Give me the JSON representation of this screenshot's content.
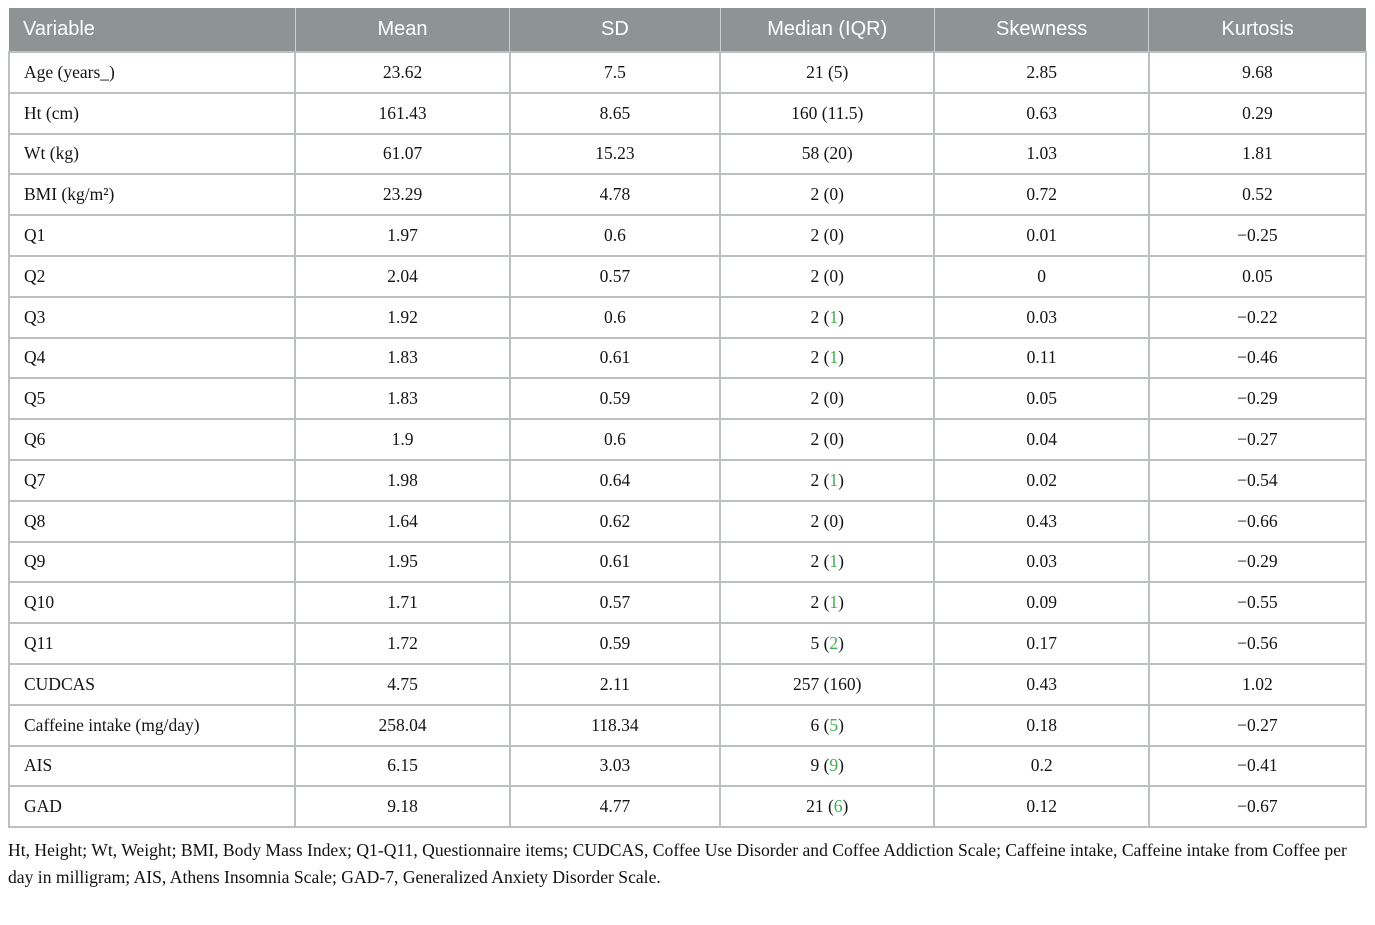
{
  "colors": {
    "header_bg": "#8e9394",
    "header_text": "#ffffff",
    "border": "#bcc0c1",
    "green_accent": "#3fae4e",
    "body_text": "#141414"
  },
  "table": {
    "columns": [
      "Variable",
      "Mean",
      "SD",
      "Median (IQR)",
      "Skewness",
      "Kurtosis"
    ],
    "rows": [
      {
        "variable": "Age (years_)",
        "mean": "23.62",
        "sd": "7.5",
        "median": "21",
        "iqr": "5",
        "iqr_green": false,
        "skewness": "2.85",
        "kurtosis": "9.68"
      },
      {
        "variable": "Ht (cm)",
        "mean": "161.43",
        "sd": "8.65",
        "median": "160",
        "iqr": "11.5",
        "iqr_green": false,
        "skewness": "0.63",
        "kurtosis": "0.29"
      },
      {
        "variable": "Wt (kg)",
        "mean": "61.07",
        "sd": "15.23",
        "median": "58",
        "iqr": "20",
        "iqr_green": false,
        "skewness": "1.03",
        "kurtosis": "1.81"
      },
      {
        "variable": "BMI (kg/m²)",
        "mean": "23.29",
        "sd": "4.78",
        "median": "2",
        "iqr": "0",
        "iqr_green": false,
        "skewness": "0.72",
        "kurtosis": "0.52"
      },
      {
        "variable": "Q1",
        "mean": "1.97",
        "sd": "0.6",
        "median": "2",
        "iqr": "0",
        "iqr_green": false,
        "skewness": "0.01",
        "kurtosis": "−0.25"
      },
      {
        "variable": "Q2",
        "mean": "2.04",
        "sd": "0.57",
        "median": "2",
        "iqr": "0",
        "iqr_green": false,
        "skewness": "0",
        "kurtosis": "0.05"
      },
      {
        "variable": "Q3",
        "mean": "1.92",
        "sd": "0.6",
        "median": "2",
        "iqr": "1",
        "iqr_green": true,
        "skewness": "0.03",
        "kurtosis": "−0.22"
      },
      {
        "variable": "Q4",
        "mean": "1.83",
        "sd": "0.61",
        "median": "2",
        "iqr": "1",
        "iqr_green": true,
        "skewness": "0.11",
        "kurtosis": "−0.46"
      },
      {
        "variable": "Q5",
        "mean": "1.83",
        "sd": "0.59",
        "median": "2",
        "iqr": "0",
        "iqr_green": false,
        "skewness": "0.05",
        "kurtosis": "−0.29"
      },
      {
        "variable": "Q6",
        "mean": "1.9",
        "sd": "0.6",
        "median": "2",
        "iqr": "0",
        "iqr_green": false,
        "skewness": "0.04",
        "kurtosis": "−0.27"
      },
      {
        "variable": "Q7",
        "mean": "1.98",
        "sd": "0.64",
        "median": "2",
        "iqr": "1",
        "iqr_green": true,
        "skewness": "0.02",
        "kurtosis": "−0.54"
      },
      {
        "variable": "Q8",
        "mean": "1.64",
        "sd": "0.62",
        "median": "2",
        "iqr": "0",
        "iqr_green": false,
        "skewness": "0.43",
        "kurtosis": "−0.66"
      },
      {
        "variable": "Q9",
        "mean": "1.95",
        "sd": "0.61",
        "median": "2",
        "iqr": "1",
        "iqr_green": true,
        "skewness": "0.03",
        "kurtosis": "−0.29"
      },
      {
        "variable": "Q10",
        "mean": "1.71",
        "sd": "0.57",
        "median": "2",
        "iqr": "1",
        "iqr_green": true,
        "skewness": "0.09",
        "kurtosis": "−0.55"
      },
      {
        "variable": "Q11",
        "mean": "1.72",
        "sd": "0.59",
        "median": "5",
        "iqr": "2",
        "iqr_green": true,
        "skewness": "0.17",
        "kurtosis": "−0.56"
      },
      {
        "variable": "CUDCAS",
        "mean": "4.75",
        "sd": "2.11",
        "median": "257",
        "iqr": "160",
        "iqr_green": false,
        "skewness": "0.43",
        "kurtosis": "1.02"
      },
      {
        "variable": "Caffeine intake (mg/day)",
        "mean": "258.04",
        "sd": "118.34",
        "median": "6",
        "iqr": "5",
        "iqr_green": true,
        "skewness": "0.18",
        "kurtosis": "−0.27"
      },
      {
        "variable": "AIS",
        "mean": "6.15",
        "sd": "3.03",
        "median": "9",
        "iqr": "9",
        "iqr_green": true,
        "skewness": "0.2",
        "kurtosis": "−0.41"
      },
      {
        "variable": "GAD",
        "mean": "9.18",
        "sd": "4.77",
        "median": "21",
        "iqr": "6",
        "iqr_green": true,
        "skewness": "0.12",
        "kurtosis": "−0.67"
      }
    ],
    "footnote": "Ht, Height; Wt, Weight; BMI, Body Mass Index; Q1-Q11, Questionnaire items; CUDCAS, Coffee Use Disorder and Coffee Addiction Scale; Caffeine intake, Caffeine intake from Coffee per day in milligram; AIS, Athens Insomnia Scale; GAD-7, Generalized Anxiety Disorder Scale."
  }
}
